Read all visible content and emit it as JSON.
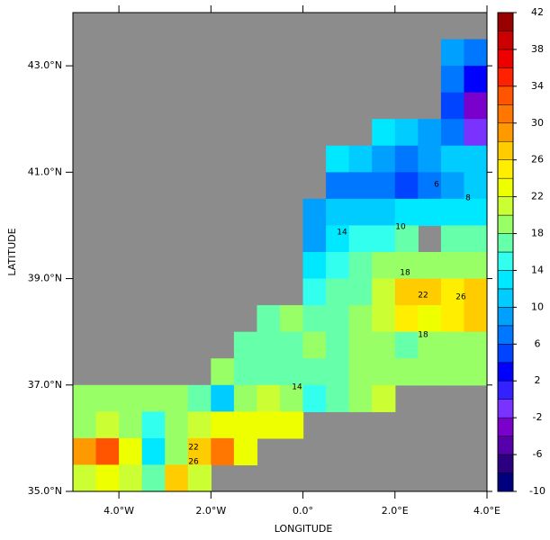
{
  "chart_data": {
    "type": "contourf",
    "xlabel": "LONGITUDE",
    "ylabel": "LATITUDE",
    "xlim": [
      -5,
      4
    ],
    "ylim": [
      35,
      44
    ],
    "xticks": [
      {
        "value": -4,
        "label": "4.0°W"
      },
      {
        "value": -2,
        "label": "2.0°W"
      },
      {
        "value": 0,
        "label": "0.0°"
      },
      {
        "value": 2,
        "label": "2.0°E"
      },
      {
        "value": 4,
        "label": "4.0°E"
      }
    ],
    "yticks": [
      {
        "value": 35,
        "label": "35.0°N"
      },
      {
        "value": 37,
        "label": "37.0°N"
      },
      {
        "value": 39,
        "label": "39.0°N"
      },
      {
        "value": 41,
        "label": "41.0°N"
      },
      {
        "value": 43,
        "label": "43.0°N"
      }
    ],
    "land_color": "#8c8c8c",
    "x": [
      -4.75,
      -4.25,
      -3.75,
      -3.25,
      -2.75,
      -2.25,
      -1.75,
      -1.25,
      -0.75,
      -0.25,
      0.25,
      0.75,
      1.25,
      1.75,
      2.25,
      2.75,
      3.25,
      3.75
    ],
    "y": [
      43.75,
      43.25,
      42.75,
      42.25,
      41.75,
      41.25,
      40.75,
      40.25,
      39.75,
      39.25,
      38.75,
      38.25,
      37.75,
      37.25,
      36.75,
      36.25,
      35.75,
      35.25
    ],
    "z": [
      [
        null,
        null,
        null,
        null,
        null,
        null,
        null,
        null,
        null,
        null,
        null,
        null,
        null,
        null,
        null,
        null,
        null,
        null
      ],
      [
        null,
        null,
        null,
        null,
        null,
        null,
        null,
        null,
        null,
        null,
        null,
        null,
        null,
        null,
        null,
        null,
        8,
        6
      ],
      [
        null,
        null,
        null,
        null,
        null,
        null,
        null,
        null,
        null,
        null,
        null,
        null,
        null,
        null,
        null,
        null,
        6,
        2
      ],
      [
        null,
        null,
        null,
        null,
        null,
        null,
        null,
        null,
        null,
        null,
        null,
        null,
        null,
        null,
        null,
        null,
        4,
        -4
      ],
      [
        null,
        null,
        null,
        null,
        null,
        null,
        null,
        null,
        null,
        null,
        null,
        null,
        null,
        12,
        10,
        8,
        6,
        -2
      ],
      [
        null,
        null,
        null,
        null,
        null,
        null,
        null,
        null,
        null,
        null,
        null,
        12,
        10,
        8,
        6,
        8,
        10,
        10
      ],
      [
        null,
        null,
        null,
        null,
        null,
        null,
        null,
        null,
        null,
        null,
        null,
        6,
        6,
        6,
        4,
        6,
        8,
        10
      ],
      [
        null,
        null,
        null,
        null,
        null,
        null,
        null,
        null,
        null,
        null,
        8,
        10,
        10,
        10,
        12,
        12,
        12,
        12
      ],
      [
        null,
        null,
        null,
        null,
        null,
        null,
        null,
        null,
        null,
        null,
        8,
        12,
        14,
        14,
        16,
        null,
        16,
        16
      ],
      [
        null,
        null,
        null,
        null,
        null,
        null,
        null,
        null,
        null,
        null,
        12,
        14,
        16,
        18,
        18,
        18,
        18,
        18
      ],
      [
        null,
        null,
        null,
        null,
        null,
        null,
        null,
        null,
        null,
        null,
        14,
        16,
        16,
        20,
        26,
        26,
        24,
        26
      ],
      [
        null,
        null,
        null,
        null,
        null,
        null,
        null,
        null,
        16,
        18,
        16,
        16,
        18,
        20,
        24,
        22,
        24,
        26
      ],
      [
        null,
        null,
        null,
        null,
        null,
        null,
        null,
        16,
        16,
        16,
        18,
        16,
        18,
        18,
        16,
        18,
        18,
        18
      ],
      [
        null,
        null,
        null,
        null,
        null,
        null,
        18,
        16,
        16,
        16,
        16,
        16,
        18,
        18,
        18,
        18,
        18,
        18
      ],
      [
        18,
        18,
        18,
        18,
        18,
        16,
        10,
        18,
        20,
        18,
        14,
        16,
        18,
        20,
        null,
        null,
        null,
        null
      ],
      [
        18,
        20,
        18,
        14,
        18,
        20,
        22,
        22,
        22,
        22,
        null,
        null,
        null,
        null,
        null,
        null,
        null,
        null
      ],
      [
        28,
        32,
        22,
        12,
        18,
        26,
        30,
        22,
        null,
        null,
        null,
        null,
        null,
        null,
        null,
        null,
        null,
        null
      ],
      [
        20,
        22,
        20,
        16,
        26,
        20,
        null,
        null,
        null,
        null,
        null,
        null,
        null,
        null,
        null,
        null,
        null,
        null
      ]
    ],
    "levels": [
      -10,
      -8,
      -6,
      -4,
      -2,
      0,
      2,
      4,
      6,
      8,
      10,
      12,
      14,
      16,
      18,
      20,
      22,
      24,
      26,
      28,
      30,
      32,
      34,
      36,
      38,
      40,
      42
    ],
    "colors": [
      "#00007f",
      "#2a0080",
      "#5500aa",
      "#7a00cc",
      "#7a33ff",
      "#3322ff",
      "#0000ff",
      "#0044ff",
      "#0077ff",
      "#00a0ff",
      "#00ccff",
      "#00e8ff",
      "#33ffee",
      "#66ffaa",
      "#99ff66",
      "#ccff33",
      "#eeff00",
      "#ffee00",
      "#ffcc00",
      "#ff9900",
      "#ff7700",
      "#ff5500",
      "#ff2200",
      "#ee0000",
      "#cc0000",
      "#990000"
    ],
    "cbar_ticks": [
      -10,
      -6,
      -2,
      2,
      6,
      10,
      14,
      18,
      22,
      26,
      30,
      34,
      38,
      42
    ],
    "contour_labels": [
      6,
      8,
      10,
      14,
      18,
      22,
      26,
      18,
      14,
      22,
      26
    ]
  }
}
